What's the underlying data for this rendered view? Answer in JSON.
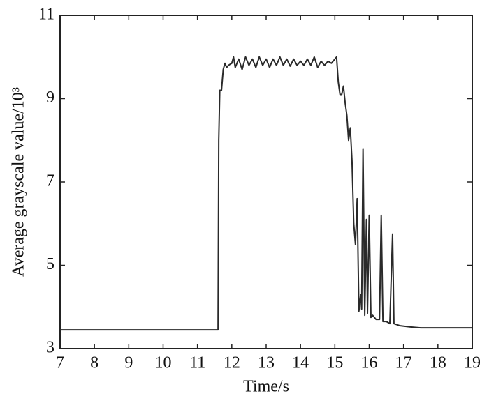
{
  "chart_data": {
    "type": "line",
    "xlabel": "Time/s",
    "ylabel": "Average grayscale value/10³",
    "x": [
      7,
      11.6,
      11.62,
      11.65,
      11.7,
      11.75,
      11.8,
      11.85,
      11.9,
      12.0,
      12.05,
      12.1,
      12.2,
      12.3,
      12.4,
      12.5,
      12.6,
      12.7,
      12.8,
      12.9,
      13.0,
      13.1,
      13.2,
      13.3,
      13.4,
      13.5,
      13.6,
      13.7,
      13.8,
      13.9,
      14.0,
      14.1,
      14.2,
      14.3,
      14.4,
      14.5,
      14.6,
      14.7,
      14.8,
      14.9,
      15.0,
      15.05,
      15.1,
      15.15,
      15.2,
      15.25,
      15.3,
      15.35,
      15.4,
      15.45,
      15.5,
      15.55,
      15.6,
      15.65,
      15.7,
      15.75,
      15.78,
      15.82,
      15.87,
      15.92,
      15.95,
      16.0,
      16.05,
      16.1,
      16.2,
      16.3,
      16.35,
      16.4,
      16.5,
      16.6,
      16.68,
      16.72,
      16.9,
      17.2,
      17.5,
      18,
      19
    ],
    "series": [
      {
        "name": "Average grayscale",
        "color": "#2a2a2a",
        "values": [
          3.45,
          3.45,
          8.0,
          9.2,
          9.2,
          9.7,
          9.85,
          9.75,
          9.8,
          9.85,
          10.0,
          9.75,
          9.95,
          9.7,
          10.0,
          9.8,
          9.95,
          9.75,
          10.0,
          9.8,
          9.95,
          9.75,
          9.95,
          9.8,
          10.0,
          9.8,
          9.95,
          9.78,
          9.95,
          9.8,
          9.9,
          9.8,
          9.95,
          9.8,
          10.0,
          9.75,
          9.9,
          9.8,
          9.9,
          9.85,
          9.95,
          10.0,
          9.4,
          9.1,
          9.1,
          9.3,
          8.9,
          8.6,
          8.0,
          8.3,
          7.5,
          6.0,
          5.5,
          6.6,
          3.9,
          4.3,
          3.95,
          7.8,
          3.8,
          6.1,
          3.85,
          6.2,
          3.75,
          3.8,
          3.7,
          3.7,
          6.2,
          3.65,
          3.65,
          3.6,
          5.75,
          3.6,
          3.55,
          3.52,
          3.5,
          3.5,
          3.5
        ]
      }
    ],
    "xlim": [
      7,
      19
    ],
    "xticks": [
      7,
      8,
      9,
      10,
      11,
      12,
      13,
      14,
      15,
      16,
      17,
      18,
      19
    ],
    "ylim": [
      3,
      11
    ],
    "yticks": [
      3,
      5,
      7,
      9,
      11
    ]
  }
}
